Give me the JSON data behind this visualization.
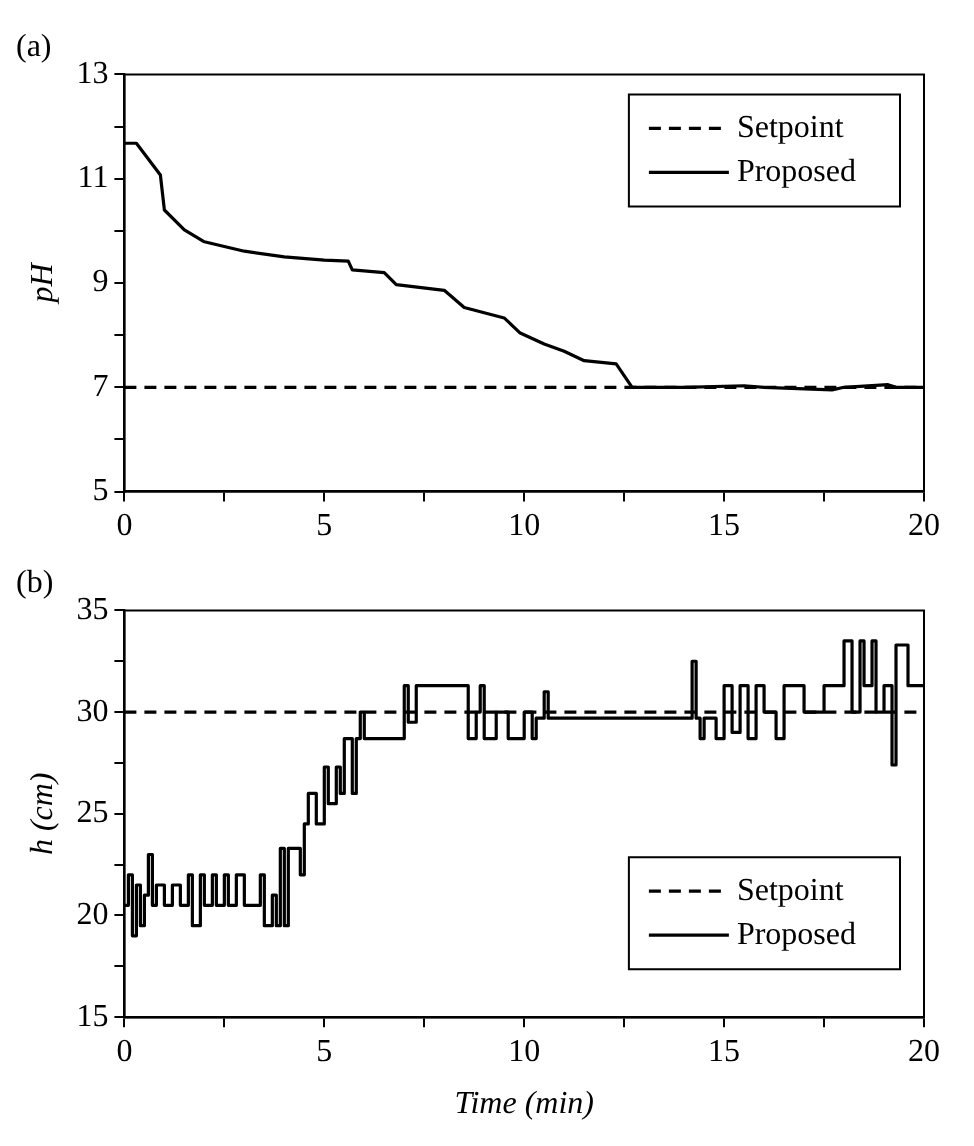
{
  "chart_data": [
    {
      "type": "line",
      "title": "(a)",
      "ylabel": "pH",
      "xlim": [
        0,
        20
      ],
      "ylim": [
        5,
        13
      ],
      "xticks": [
        0,
        {
          "value": 2.5,
          "label": null
        },
        5,
        {
          "value": 7.5,
          "label": null
        },
        10,
        {
          "value": 12.5,
          "label": null
        },
        15,
        {
          "value": 17.5,
          "label": null
        },
        20
      ],
      "yticks": [
        5,
        {
          "value": 6,
          "label": null
        },
        7,
        {
          "value": 8,
          "label": null
        },
        9,
        {
          "value": 10,
          "label": null
        },
        11,
        {
          "value": 12,
          "label": null
        },
        13
      ],
      "grid": false,
      "legend": "top right",
      "marker": "none",
      "series": [
        {
          "name": "Setpoint",
          "color": "#000000",
          "line_style": "dashed",
          "x": [
            0,
            20
          ],
          "values": [
            7,
            7
          ]
        },
        {
          "name": "Proposed",
          "color": "#000000",
          "line_style": "solid",
          "x": [
            0,
            0.3,
            0.9,
            1.0,
            1.5,
            2,
            3,
            4,
            5,
            5.6,
            5.7,
            6.5,
            6.8,
            8,
            8.5,
            9.5,
            9.9,
            10.5,
            11,
            11.5,
            12.3,
            12.7,
            14,
            15.5,
            16,
            17.7,
            18,
            19.1,
            19.3,
            20
          ],
          "values": [
            11.68,
            11.68,
            11.07,
            10.4,
            10.02,
            9.79,
            9.61,
            9.5,
            9.44,
            9.42,
            9.25,
            9.2,
            8.97,
            8.86,
            8.53,
            8.33,
            8.04,
            7.83,
            7.69,
            7.51,
            7.45,
            7.0,
            7.0,
            7.03,
            7.0,
            6.95,
            7.0,
            7.05,
            7.0,
            7.0
          ]
        }
      ]
    },
    {
      "type": "line",
      "title": "(b)",
      "xlabel": "Time (min)",
      "ylabel": "h (cm)",
      "xlim": [
        0,
        20
      ],
      "ylim": [
        15,
        35
      ],
      "xticks": [
        0,
        {
          "value": 2.5,
          "label": null
        },
        5,
        {
          "value": 7.5,
          "label": null
        },
        10,
        {
          "value": 12.5,
          "label": null
        },
        15,
        {
          "value": 17.5,
          "label": null
        },
        20
      ],
      "yticks": [
        15,
        {
          "value": 17.5,
          "label": null
        },
        20,
        {
          "value": 22.5,
          "label": null
        },
        25,
        {
          "value": 27.5,
          "label": null
        },
        30,
        {
          "value": 32.5,
          "label": null
        },
        35
      ],
      "grid": false,
      "legend": "bottom right",
      "marker": "none",
      "series": [
        {
          "name": "Setpoint",
          "color": "#000000",
          "line_style": "dashed",
          "x": [
            0,
            20
          ],
          "values": [
            30,
            30
          ]
        },
        {
          "name": "Proposed",
          "color": "#000000",
          "line_style": "solid",
          "type": "step",
          "x": [
            0,
            0.1,
            0.2,
            0.3,
            0.4,
            0.5,
            0.6,
            0.7,
            0.8,
            1.0,
            1.2,
            1.4,
            1.6,
            1.7,
            1.9,
            2.0,
            2.2,
            2.3,
            2.5,
            2.6,
            2.8,
            3.0,
            3.4,
            3.5,
            3.7,
            3.8,
            3.9,
            4.0,
            4.1,
            4.4,
            4.5,
            4.6,
            4.8,
            5.0,
            5.1,
            5.3,
            5.4,
            5.5,
            5.7,
            5.8,
            5.9,
            6.0,
            6.9,
            7.0,
            7.1,
            7.3,
            8.5,
            8.6,
            8.8,
            8.9,
            9.0,
            9.3,
            9.6,
            10.0,
            10.2,
            10.3,
            10.5,
            10.6,
            14.0,
            14.2,
            14.3,
            14.4,
            14.5,
            14.8,
            15.0,
            15.2,
            15.4,
            15.6,
            15.8,
            16.0,
            16.3,
            16.5,
            17.0,
            17.5,
            18.0,
            18.2,
            18.4,
            18.5,
            18.7,
            18.8,
            19.0,
            19.2,
            19.3,
            19.6,
            20
          ],
          "values": [
            20.5,
            22,
            19,
            21.5,
            19.5,
            21,
            23,
            20.5,
            21.5,
            20.5,
            21.5,
            20.5,
            22,
            19.5,
            22,
            20.5,
            22,
            20.5,
            22,
            20.5,
            22,
            20.5,
            22,
            19.5,
            21,
            19.5,
            23.3,
            19.5,
            23.3,
            22,
            24.5,
            26,
            24.5,
            27.3,
            25.5,
            27.3,
            26,
            28.7,
            26,
            28.7,
            30,
            28.7,
            28.7,
            31.3,
            29.5,
            31.3,
            31.3,
            28.7,
            30,
            31.3,
            28.7,
            30,
            28.7,
            30,
            28.7,
            29.7,
            31,
            29.7,
            29.7,
            32.5,
            29.7,
            28.7,
            29.7,
            28.7,
            31.3,
            29,
            31.3,
            28.7,
            31.3,
            30,
            28.7,
            31.3,
            30,
            31.3,
            33.5,
            30,
            33.5,
            31.3,
            33.5,
            30,
            31.3,
            27.4,
            33.3,
            31.3,
            31.3
          ]
        }
      ]
    }
  ]
}
